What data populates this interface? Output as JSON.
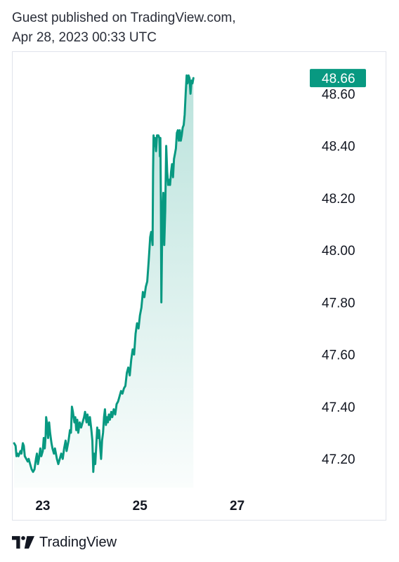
{
  "header": {
    "line1": "Guest published on TradingView.com,",
    "line2": "Apr 28, 2023 00:33 UTC"
  },
  "footer": {
    "brand": "TradingView",
    "logo_icon": "tradingview-logo-icon"
  },
  "colors": {
    "line": "#089981",
    "fill_top": "#089981",
    "last_price_bg": "#089981",
    "axis_text": "#131722",
    "border": "#e0e3eb"
  },
  "chart_data": {
    "type": "area",
    "title": "",
    "xlabel": "",
    "ylabel": "",
    "last_price_label": "48.66",
    "y_ticks": [
      "47.20",
      "47.40",
      "47.60",
      "47.80",
      "48.00",
      "48.20",
      "48.40",
      "48.60"
    ],
    "x_ticks": [
      {
        "label": "23",
        "x": 23.0
      },
      {
        "label": "25",
        "x": 25.0
      },
      {
        "label": "27",
        "x": 27.0
      }
    ],
    "xlim": [
      22.38,
      28.35
    ],
    "ylim": [
      47.09,
      48.76
    ],
    "grid": false,
    "series": [
      {
        "values": [
          [
            22.41,
            47.26
          ],
          [
            22.44,
            47.25
          ],
          [
            22.46,
            47.21
          ],
          [
            22.48,
            47.22
          ],
          [
            22.5,
            47.21
          ],
          [
            22.52,
            47.22
          ],
          [
            22.54,
            47.23
          ],
          [
            22.56,
            47.22
          ],
          [
            22.59,
            47.26
          ],
          [
            22.61,
            47.25
          ],
          [
            22.63,
            47.21
          ],
          [
            22.66,
            47.2
          ],
          [
            22.69,
            47.19
          ],
          [
            22.71,
            47.2
          ],
          [
            22.74,
            47.18
          ],
          [
            22.77,
            47.16
          ],
          [
            22.8,
            47.15
          ],
          [
            22.83,
            47.16
          ],
          [
            22.86,
            47.2
          ],
          [
            22.88,
            47.22
          ],
          [
            22.9,
            47.18
          ],
          [
            22.92,
            47.2
          ],
          [
            22.95,
            47.24
          ],
          [
            22.97,
            47.21
          ],
          [
            23.0,
            47.23
          ],
          [
            23.02,
            47.28
          ],
          [
            23.04,
            47.24
          ],
          [
            23.06,
            47.29
          ],
          [
            23.07,
            47.36
          ],
          [
            23.09,
            47.33
          ],
          [
            23.11,
            47.28
          ],
          [
            23.13,
            47.34
          ],
          [
            23.15,
            47.3
          ],
          [
            23.18,
            47.26
          ],
          [
            23.2,
            47.24
          ],
          [
            23.23,
            47.22
          ],
          [
            23.25,
            47.24
          ],
          [
            23.27,
            47.22
          ],
          [
            23.29,
            47.2
          ],
          [
            23.32,
            47.18
          ],
          [
            23.35,
            47.2
          ],
          [
            23.38,
            47.22
          ],
          [
            23.41,
            47.2
          ],
          [
            23.44,
            47.24
          ],
          [
            23.47,
            47.27
          ],
          [
            23.49,
            47.23
          ],
          [
            23.51,
            47.25
          ],
          [
            23.53,
            47.27
          ],
          [
            23.56,
            47.31
          ],
          [
            23.58,
            47.3
          ],
          [
            23.6,
            47.4
          ],
          [
            23.62,
            47.38
          ],
          [
            23.65,
            47.34
          ],
          [
            23.67,
            47.36
          ],
          [
            23.69,
            47.31
          ],
          [
            23.71,
            47.35
          ],
          [
            23.73,
            47.3
          ],
          [
            23.76,
            47.34
          ],
          [
            23.79,
            47.32
          ],
          [
            23.82,
            47.34
          ],
          [
            23.85,
            47.36
          ],
          [
            23.87,
            47.38
          ],
          [
            23.9,
            47.34
          ],
          [
            23.92,
            47.37
          ],
          [
            23.95,
            47.33
          ],
          [
            23.97,
            47.36
          ],
          [
            24.0,
            47.31
          ],
          [
            24.02,
            47.27
          ],
          [
            24.04,
            47.15
          ],
          [
            24.06,
            47.22
          ],
          [
            24.08,
            47.18
          ],
          [
            24.1,
            47.25
          ],
          [
            24.12,
            47.32
          ],
          [
            24.14,
            47.28
          ],
          [
            24.16,
            47.31
          ],
          [
            24.18,
            47.25
          ],
          [
            24.2,
            47.2
          ],
          [
            24.22,
            47.27
          ],
          [
            24.24,
            47.3
          ],
          [
            24.26,
            47.36
          ],
          [
            24.28,
            47.39
          ],
          [
            24.3,
            47.33
          ],
          [
            24.32,
            47.36
          ],
          [
            24.34,
            47.34
          ],
          [
            24.36,
            47.37
          ],
          [
            24.38,
            47.35
          ],
          [
            24.41,
            47.38
          ],
          [
            24.43,
            47.36
          ],
          [
            24.46,
            47.39
          ],
          [
            24.49,
            47.37
          ],
          [
            24.52,
            47.41
          ],
          [
            24.55,
            47.42
          ],
          [
            24.58,
            47.44
          ],
          [
            24.61,
            47.46
          ],
          [
            24.64,
            47.45
          ],
          [
            24.67,
            47.47
          ],
          [
            24.7,
            47.48
          ],
          [
            24.73,
            47.53
          ],
          [
            24.76,
            47.55
          ],
          [
            24.79,
            47.52
          ],
          [
            24.82,
            47.58
          ],
          [
            24.85,
            47.62
          ],
          [
            24.88,
            47.6
          ],
          [
            24.91,
            47.68
          ],
          [
            24.94,
            47.72
          ],
          [
            24.97,
            47.7
          ],
          [
            25.0,
            47.75
          ],
          [
            25.03,
            47.78
          ],
          [
            25.06,
            47.84
          ],
          [
            25.09,
            47.82
          ],
          [
            25.12,
            47.86
          ],
          [
            25.15,
            47.88
          ],
          [
            25.18,
            47.96
          ],
          [
            25.21,
            48.05
          ],
          [
            25.23,
            48.07
          ],
          [
            25.25,
            48.04
          ],
          [
            25.26,
            48.02
          ],
          [
            25.27,
            48.3
          ],
          [
            25.28,
            48.44
          ],
          [
            25.3,
            48.4
          ],
          [
            25.31,
            48.43
          ],
          [
            25.33,
            48.38
          ],
          [
            25.35,
            48.44
          ],
          [
            25.38,
            48.44
          ],
          [
            25.4,
            48.43
          ],
          [
            25.41,
            48.36
          ],
          [
            25.42,
            48.43
          ],
          [
            25.43,
            48.2
          ],
          [
            25.44,
            47.8
          ],
          [
            25.46,
            48.12
          ],
          [
            25.48,
            48.22
          ],
          [
            25.5,
            48.02
          ],
          [
            25.52,
            48.15
          ],
          [
            25.54,
            48.4
          ],
          [
            25.56,
            48.3
          ],
          [
            25.58,
            48.25
          ],
          [
            25.6,
            48.27
          ],
          [
            25.62,
            48.25
          ],
          [
            25.64,
            48.3
          ],
          [
            25.66,
            48.33
          ],
          [
            25.68,
            48.28
          ],
          [
            25.7,
            48.35
          ],
          [
            25.72,
            48.37
          ],
          [
            25.74,
            48.39
          ],
          [
            25.76,
            48.45
          ],
          [
            25.78,
            48.46
          ],
          [
            25.8,
            48.42
          ],
          [
            25.82,
            48.46
          ],
          [
            25.84,
            48.42
          ],
          [
            25.86,
            48.44
          ],
          [
            25.88,
            48.47
          ],
          [
            25.9,
            48.48
          ],
          [
            25.92,
            48.52
          ],
          [
            25.94,
            48.6
          ],
          [
            25.96,
            48.67
          ],
          [
            25.98,
            48.64
          ],
          [
            26.0,
            48.67
          ],
          [
            26.02,
            48.66
          ],
          [
            26.04,
            48.6
          ],
          [
            26.06,
            48.65
          ],
          [
            26.08,
            48.64
          ],
          [
            26.1,
            48.66
          ]
        ]
      }
    ]
  }
}
